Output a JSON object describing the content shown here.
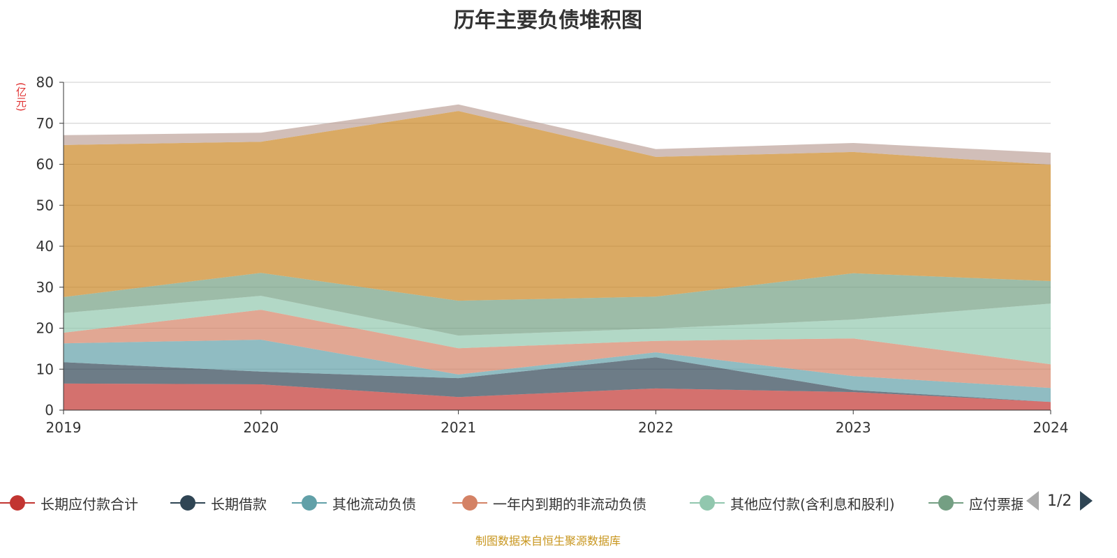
{
  "chart_data": {
    "type": "area",
    "stacked": true,
    "title": "历年主要负债堆积图",
    "ylabel": "(亿元)",
    "xlabel": "",
    "ylim": [
      0,
      80
    ],
    "yticks": [
      0,
      10,
      20,
      30,
      40,
      50,
      60,
      70,
      80
    ],
    "categories": [
      "2019",
      "2020",
      "2021",
      "2022",
      "2023",
      "2024"
    ],
    "grid": true,
    "legend_position": "bottom",
    "series": [
      {
        "name": "长期应付款合计",
        "color": "#c23531",
        "values": [
          6.5,
          6.3,
          3.2,
          5.3,
          4.4,
          2.0
        ]
      },
      {
        "name": "长期借款",
        "color": "#2f4554",
        "values": [
          5.2,
          3.1,
          4.6,
          7.6,
          0.5,
          0.0
        ]
      },
      {
        "name": "其他流动负债",
        "color": "#61a0a8",
        "values": [
          4.6,
          7.8,
          0.9,
          1.2,
          3.4,
          3.4
        ]
      },
      {
        "name": "一年内到期的非流动负债",
        "color": "#d48265",
        "values": [
          2.6,
          7.3,
          6.4,
          2.8,
          9.2,
          5.8
        ]
      },
      {
        "name": "其他应付款(含利息和股利)",
        "color": "#91c7ae",
        "values": [
          4.8,
          3.4,
          3.1,
          3.0,
          4.6,
          14.8
        ]
      },
      {
        "name": "应付票据",
        "color": "#749f83",
        "values": [
          3.9,
          5.6,
          8.5,
          7.8,
          11.3,
          5.5
        ]
      },
      {
        "color": "#ca8622",
        "values": [
          37.1,
          32.0,
          46.3,
          34.1,
          29.6,
          28.4
        ]
      },
      {
        "color": "#bda29a",
        "values": [
          2.4,
          2.2,
          1.6,
          1.9,
          2.2,
          2.9
        ]
      }
    ]
  },
  "legend": {
    "page": "1/2",
    "visible_count": 6
  },
  "source": "制图数据来自恒生聚源数据库"
}
